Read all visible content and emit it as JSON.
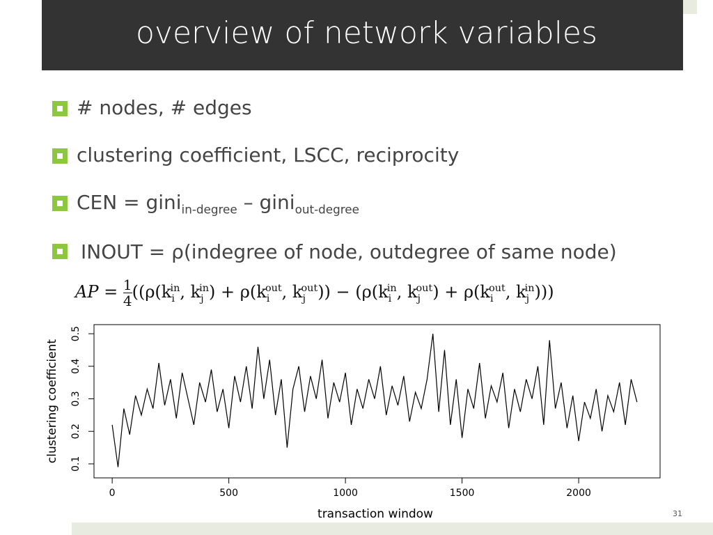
{
  "slide": {
    "title": "overview of network variables",
    "bullets": [
      [
        "# nodes, # edges"
      ],
      [
        "clustering coefficient, LSCC, reciprocity"
      ],
      [
        "CEN = gini",
        "in-degree",
        " – gini",
        "out-degree"
      ],
      [
        "INOUT = ρ(indegree of node, outdegree of same node)"
      ]
    ],
    "formula": [
      "AP = ",
      "1",
      "4",
      "((ρ(k",
      "i",
      "in",
      ", k",
      "j",
      "in",
      ") + ρ(k",
      "i",
      "out",
      ", k",
      "j",
      "out",
      ")) − (ρ(k",
      "i",
      "in",
      ", k",
      "j",
      "out",
      ") + ρ(k",
      "i",
      "out",
      ", k",
      "j",
      "in",
      ")))"
    ],
    "page_number": "31"
  },
  "chart_data": {
    "type": "line",
    "x_label": "transaction window",
    "y_label": "clustering coefficient",
    "color": "#000000",
    "x": [
      0,
      25,
      50,
      75,
      100,
      125,
      150,
      175,
      200,
      225,
      250,
      275,
      300,
      325,
      350,
      375,
      400,
      425,
      450,
      475,
      500,
      525,
      550,
      575,
      600,
      625,
      650,
      675,
      700,
      725,
      750,
      775,
      800,
      825,
      850,
      875,
      900,
      925,
      950,
      975,
      1000,
      1025,
      1050,
      1075,
      1100,
      1125,
      1150,
      1175,
      1200,
      1225,
      1250,
      1275,
      1300,
      1325,
      1350,
      1375,
      1400,
      1425,
      1450,
      1475,
      1500,
      1525,
      1550,
      1575,
      1600,
      1625,
      1650,
      1675,
      1700,
      1725,
      1750,
      1775,
      1800,
      1825,
      1850,
      1875,
      1900,
      1925,
      1950,
      1975,
      2000,
      2025,
      2050,
      2075,
      2100,
      2125,
      2150,
      2175,
      2200,
      2225,
      2250
    ],
    "values": [
      0.22,
      0.09,
      0.27,
      0.19,
      0.31,
      0.25,
      0.33,
      0.27,
      0.41,
      0.28,
      0.36,
      0.24,
      0.38,
      0.3,
      0.22,
      0.35,
      0.29,
      0.39,
      0.26,
      0.33,
      0.21,
      0.37,
      0.29,
      0.4,
      0.27,
      0.46,
      0.3,
      0.42,
      0.25,
      0.36,
      0.15,
      0.33,
      0.4,
      0.26,
      0.37,
      0.3,
      0.42,
      0.24,
      0.35,
      0.29,
      0.38,
      0.22,
      0.33,
      0.27,
      0.36,
      0.3,
      0.4,
      0.25,
      0.34,
      0.28,
      0.37,
      0.23,
      0.32,
      0.27,
      0.36,
      0.5,
      0.26,
      0.45,
      0.22,
      0.36,
      0.18,
      0.33,
      0.27,
      0.41,
      0.24,
      0.34,
      0.29,
      0.38,
      0.21,
      0.33,
      0.26,
      0.36,
      0.3,
      0.4,
      0.22,
      0.48,
      0.27,
      0.35,
      0.21,
      0.31,
      0.17,
      0.29,
      0.24,
      0.33,
      0.2,
      0.31,
      0.26,
      0.35,
      0.22,
      0.36,
      0.29
    ],
    "xlim": [
      -78,
      2349
    ],
    "ylim": [
      0.057,
      0.528
    ],
    "xticks": [
      0,
      500,
      1000,
      1500,
      2000
    ],
    "yticks": [
      0.1,
      0.2,
      0.3,
      0.4,
      0.5
    ]
  }
}
